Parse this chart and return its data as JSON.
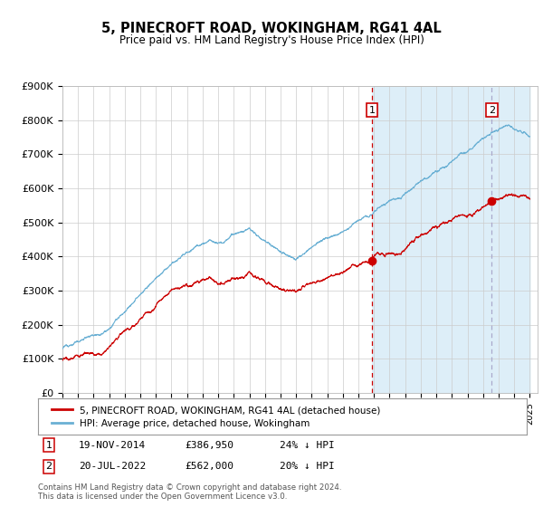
{
  "title": "5, PINECROFT ROAD, WOKINGHAM, RG41 4AL",
  "subtitle": "Price paid vs. HM Land Registry's House Price Index (HPI)",
  "hpi_color": "#6ab0d4",
  "price_color": "#cc0000",
  "vline1_color": "#cc0000",
  "vline2_color": "#aaaacc",
  "shade_color": "#ddeef8",
  "plot_bg_color": "#ffffff",
  "ylim": [
    0,
    900000
  ],
  "yticks": [
    0,
    100000,
    200000,
    300000,
    400000,
    500000,
    600000,
    700000,
    800000,
    900000
  ],
  "ytick_labels": [
    "£0",
    "£100K",
    "£200K",
    "£300K",
    "£400K",
    "£500K",
    "£600K",
    "£700K",
    "£800K",
    "£900K"
  ],
  "sale1_price": 386950,
  "sale1_year": 2014.88,
  "sale2_price": 562000,
  "sale2_year": 2022.55,
  "legend_line1": "5, PINECROFT ROAD, WOKINGHAM, RG41 4AL (detached house)",
  "legend_line2": "HPI: Average price, detached house, Wokingham",
  "footnote": "Contains HM Land Registry data © Crown copyright and database right 2024.\nThis data is licensed under the Open Government Licence v3.0.",
  "xmin": 1995,
  "xmax": 2025.5,
  "n_points": 3600
}
